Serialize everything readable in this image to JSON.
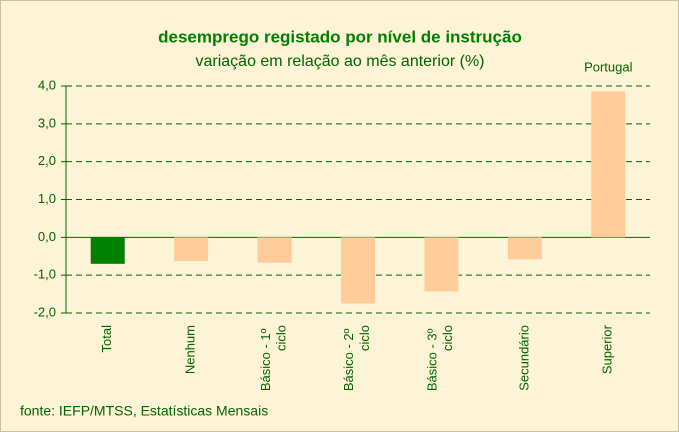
{
  "chart_data": {
    "type": "bar",
    "title": "desemprego registado por nível de instrução",
    "subtitle": "variação em relação ao mês anterior (%)",
    "annotation": "Portugal",
    "source": "fonte: IEFP/MTSS, Estatísticas Mensais",
    "categories": [
      "Total",
      "Nenhum",
      "Básico - 1º ciclo",
      "Básico - 2º ciclo",
      "Básico - 3º ciclo",
      "Secundário",
      "Superior"
    ],
    "values": [
      -0.7,
      -0.63,
      -0.67,
      -1.75,
      -1.43,
      -0.58,
      3.86
    ],
    "colors": [
      "#008000",
      "#ffcc99",
      "#ffcc99",
      "#ffcc99",
      "#ffcc99",
      "#ffcc99",
      "#ffcc99"
    ],
    "ylim": [
      -2,
      4
    ],
    "yticks": [
      {
        "value": -2,
        "label": "-2,0"
      },
      {
        "value": -1,
        "label": "-1,0"
      },
      {
        "value": 0,
        "label": "0,0"
      },
      {
        "value": 1,
        "label": "1,0"
      },
      {
        "value": 2,
        "label": "2,0"
      },
      {
        "value": 3,
        "label": "3,0"
      },
      {
        "value": 4,
        "label": "4,0"
      }
    ],
    "grid": true
  }
}
